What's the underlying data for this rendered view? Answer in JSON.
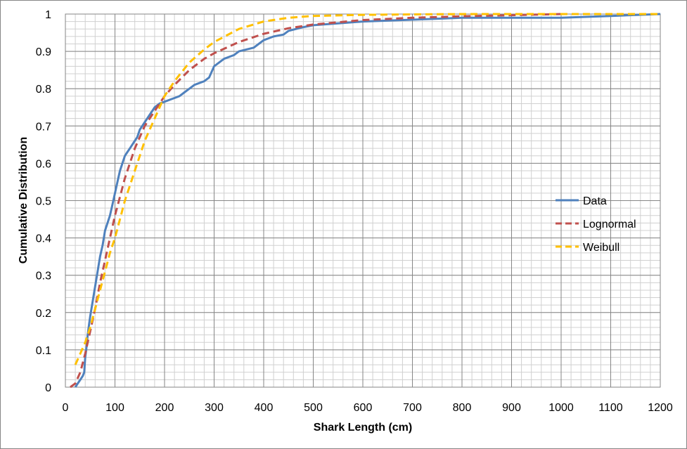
{
  "chart_data": {
    "type": "line",
    "title": "",
    "xlabel": "Shark Length (cm)",
    "ylabel": "Cumulative Distribution",
    "xlim": [
      0,
      1200
    ],
    "ylim": [
      0,
      1
    ],
    "x_ticks": [
      "0",
      "100",
      "200",
      "300",
      "400",
      "500",
      "600",
      "700",
      "800",
      "900",
      "1000",
      "1100",
      "1200"
    ],
    "y_ticks": [
      "0",
      "0.1",
      "0.2",
      "0.3",
      "0.4",
      "0.5",
      "0.6",
      "0.7",
      "0.8",
      "0.9",
      "1"
    ],
    "grid": true,
    "legend_position": "right",
    "series": [
      {
        "name": "Data",
        "color": "#4F81BD",
        "style": "solid",
        "x": [
          20,
          25,
          30,
          35,
          38,
          40,
          42,
          45,
          48,
          50,
          55,
          60,
          65,
          70,
          75,
          80,
          85,
          90,
          95,
          100,
          105,
          110,
          115,
          120,
          125,
          130,
          135,
          140,
          145,
          150,
          155,
          160,
          165,
          170,
          175,
          180,
          190,
          200,
          210,
          220,
          230,
          240,
          250,
          260,
          270,
          280,
          290,
          300,
          305,
          320,
          340,
          350,
          380,
          390,
          400,
          420,
          440,
          450,
          480,
          500,
          550,
          600,
          700,
          800,
          900,
          1000,
          1100,
          1200
        ],
        "y": [
          0.0,
          0.01,
          0.02,
          0.03,
          0.04,
          0.08,
          0.1,
          0.14,
          0.17,
          0.19,
          0.23,
          0.27,
          0.31,
          0.35,
          0.38,
          0.42,
          0.44,
          0.46,
          0.49,
          0.52,
          0.55,
          0.58,
          0.6,
          0.62,
          0.63,
          0.64,
          0.65,
          0.66,
          0.67,
          0.69,
          0.7,
          0.71,
          0.72,
          0.73,
          0.74,
          0.75,
          0.76,
          0.765,
          0.77,
          0.775,
          0.78,
          0.79,
          0.8,
          0.81,
          0.815,
          0.82,
          0.83,
          0.86,
          0.865,
          0.88,
          0.89,
          0.9,
          0.91,
          0.92,
          0.93,
          0.94,
          0.945,
          0.955,
          0.965,
          0.97,
          0.975,
          0.98,
          0.985,
          0.99,
          0.99,
          0.99,
          0.995,
          1.0
        ]
      },
      {
        "name": "Lognormal",
        "color": "#C0504D",
        "style": "dashed",
        "x": [
          10,
          20,
          30,
          40,
          50,
          60,
          70,
          80,
          90,
          100,
          110,
          120,
          130,
          140,
          150,
          160,
          170,
          180,
          200,
          220,
          250,
          280,
          300,
          350,
          400,
          450,
          500,
          550,
          600,
          700,
          800,
          900,
          1000
        ],
        "y": [
          0.0,
          0.01,
          0.04,
          0.09,
          0.15,
          0.21,
          0.28,
          0.34,
          0.4,
          0.46,
          0.51,
          0.56,
          0.6,
          0.64,
          0.67,
          0.7,
          0.72,
          0.74,
          0.78,
          0.81,
          0.85,
          0.88,
          0.895,
          0.925,
          0.947,
          0.962,
          0.972,
          0.978,
          0.984,
          0.99,
          0.994,
          0.997,
          1.0
        ]
      },
      {
        "name": "Weibull",
        "color": "#FFC000",
        "style": "dashed",
        "x": [
          20,
          30,
          40,
          50,
          60,
          70,
          80,
          90,
          100,
          110,
          120,
          130,
          140,
          150,
          160,
          170,
          180,
          200,
          220,
          250,
          280,
          300,
          350,
          400,
          450,
          500,
          600,
          700,
          800,
          900,
          1000,
          1100,
          1200
        ],
        "y": [
          0.06,
          0.09,
          0.12,
          0.16,
          0.21,
          0.26,
          0.31,
          0.36,
          0.4,
          0.45,
          0.5,
          0.54,
          0.58,
          0.62,
          0.66,
          0.69,
          0.72,
          0.78,
          0.82,
          0.87,
          0.905,
          0.925,
          0.96,
          0.98,
          0.99,
          0.995,
          0.998,
          0.999,
          1.0,
          1.0,
          1.0,
          1.0,
          1.0
        ]
      }
    ]
  }
}
